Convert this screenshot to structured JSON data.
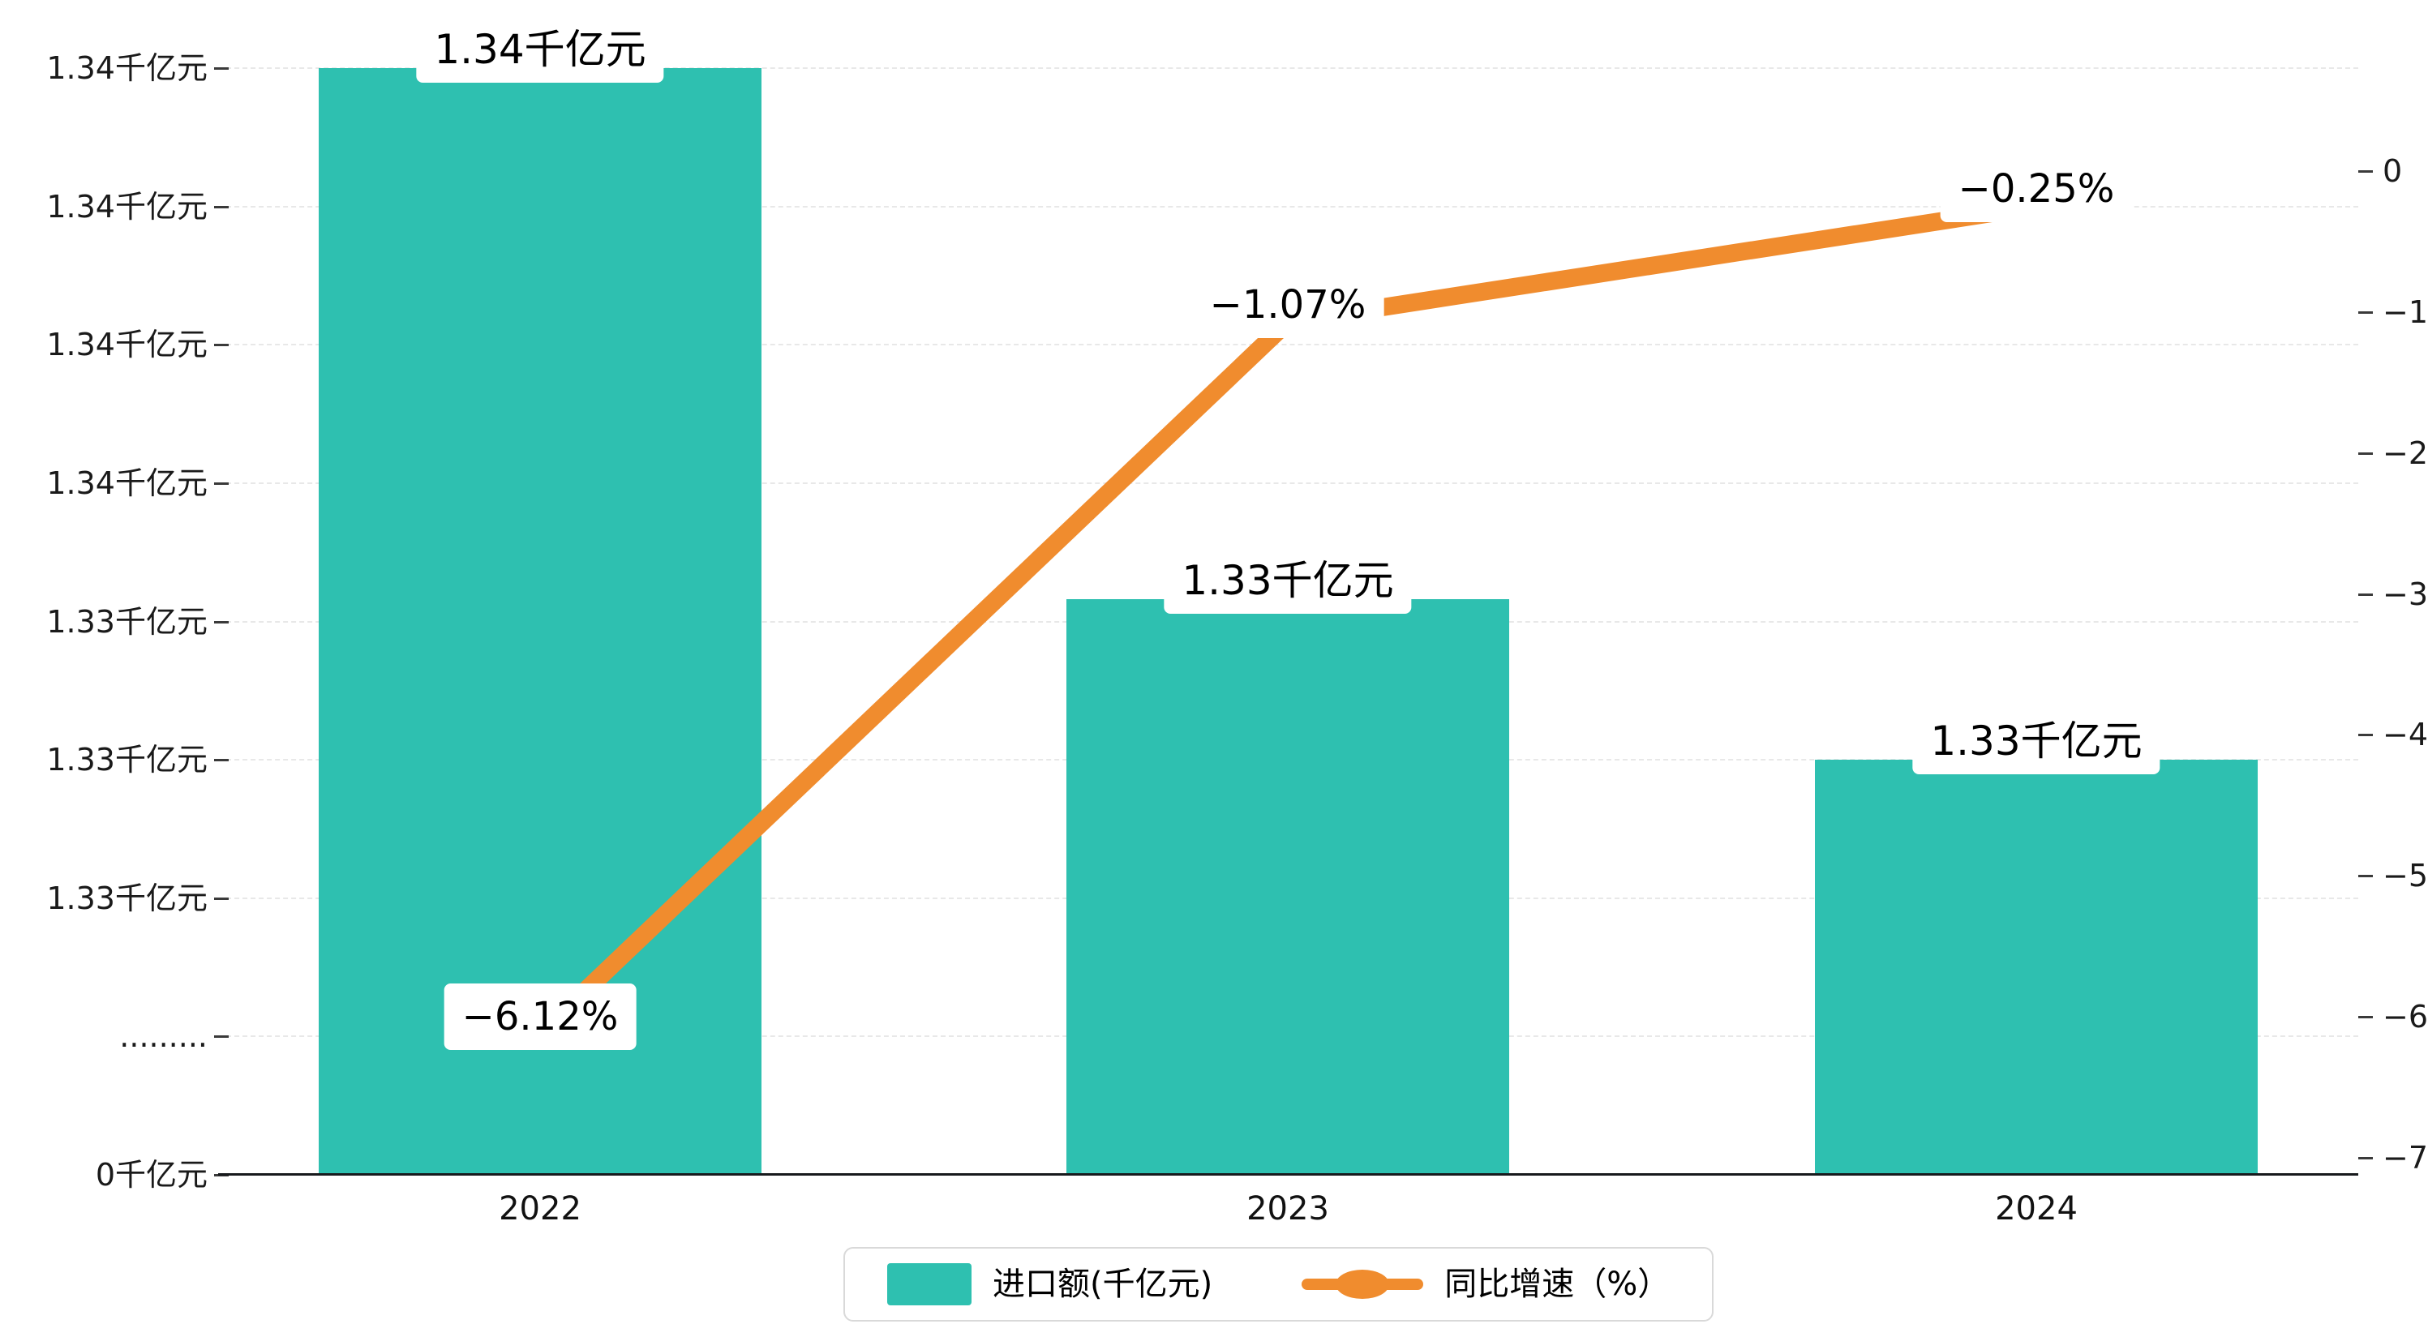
{
  "chart": {
    "title": "",
    "legend": {
      "items": [
        {
          "label": "进口额(千亿元)",
          "marker": "rect",
          "color": "#2ec0b0"
        },
        {
          "label": "同比增速（%）",
          "marker": "line-ellipse",
          "color": "#f08c2e"
        }
      ]
    }
  },
  "chart_data": {
    "type": "bar",
    "categories": [
      "2022",
      "2023",
      "2024"
    ],
    "series": [
      {
        "name": "进口额(千亿元)",
        "type": "bar",
        "unit": "千亿元",
        "values": [
          1.34,
          1.3304,
          1.3275
        ],
        "display_labels": [
          "1.34千亿元",
          "1.33千亿元",
          "1.33千亿元"
        ],
        "color": "#2ec0b0"
      },
      {
        "name": "同比增速（%）",
        "type": "line",
        "unit": "%",
        "axis": "right",
        "values": [
          -6.12,
          -1.07,
          -0.25
        ],
        "display_labels": [
          "−6.12%",
          "−1.07%",
          "−0.25%"
        ],
        "color": "#f08c2e"
      }
    ],
    "left_axis": {
      "tick_labels": [
        "1.34千亿元",
        "1.34千亿元",
        "1.34千亿元",
        "1.34千亿元",
        "1.33千亿元",
        "1.33千亿元",
        "1.33千亿元",
        ".........",
        "0千亿元"
      ],
      "broken_axis": true,
      "top_value": 1.34,
      "tick_step": 0.0025
    },
    "right_axis": {
      "tick_labels": [
        "0",
        "−1",
        "−2",
        "−3",
        "−4",
        "−5",
        "−6",
        "−7"
      ],
      "max": 0,
      "min": -7
    },
    "grid": "dashed-horizontal",
    "legend_position": "bottom-center"
  },
  "colors": {
    "bar": "#2ec0b0",
    "line": "#f08c2e",
    "grid": "#e8e8e8",
    "axis_line": "#17191c",
    "tick": "#3a3a3a",
    "text": "#000000",
    "label_bg": "#ffffff",
    "legend_border": "#d9d9d9"
  }
}
